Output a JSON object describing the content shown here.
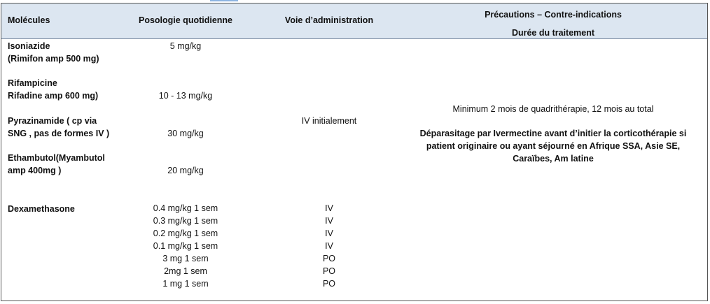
{
  "headers": {
    "col1": "Molécules",
    "col2": "Posologie quotidienne",
    "col3": "Voie d’administration",
    "col4_line1": "Précautions – Contre-indications",
    "col4_line2": "Durée du traitement"
  },
  "molecules": {
    "isoniazide_1": "Isoniazide",
    "isoniazide_2": "(Rimifon amp 500 mg)",
    "rifampicine_1": "Rifampicine",
    "rifampicine_2": "Rifadine amp 600 mg)",
    "pyrazinamide_1": "Pyrazinamide ( cp via",
    "pyrazinamide_2": "SNG , pas de formes IV )",
    "ethambutol_1": "Ethambutol(Myambutol",
    "ethambutol_2": "amp 400mg )",
    "dexamethasone": "Dexamethasone"
  },
  "doses": {
    "isoniazide": "5 mg/kg",
    "rifampicine": "10 - 13 mg/kg",
    "pyrazinamide": "30 mg/kg",
    "ethambutol": "20 mg/kg",
    "dexamethasone": [
      "0.4 mg/kg 1 sem",
      "0.3 mg/kg 1 sem",
      "0.2 mg/kg 1 sem",
      "0.1 mg/kg 1 sem",
      "3 mg 1 sem",
      "2mg 1 sem",
      "1 mg 1 sem"
    ]
  },
  "routes": {
    "initial": "IV initialement",
    "dexamethasone": [
      "IV",
      "IV",
      "IV",
      "IV",
      "PO",
      "PO",
      "PO"
    ]
  },
  "precautions": {
    "duration": "Minimum 2 mois de quadrithérapie, 12 mois au total",
    "deparasitage_1": "Déparasitage par Ivermectine avant d’initier la corticothérapie si",
    "deparasitage_2": "patient originaire ou ayant séjourné en Afrique SSA, Asie SE,",
    "deparasitage_3": "Caraïbes, Am latine"
  },
  "colors": {
    "header_bg": "#dce6f1",
    "border": "#555555"
  }
}
